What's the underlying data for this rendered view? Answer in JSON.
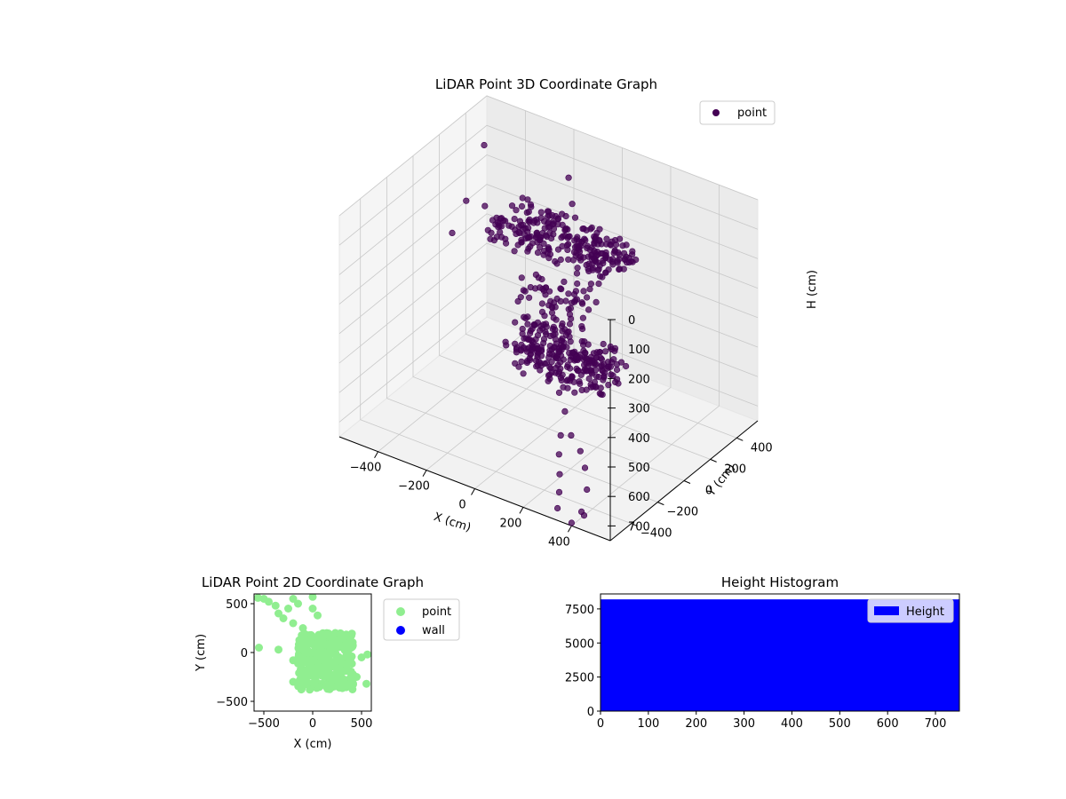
{
  "colors": {
    "point3d": "#440154",
    "point2d": "#90ee90",
    "wall": "#0000ff",
    "hist": "#0000ff"
  },
  "chart_data": [
    {
      "type": "scatter",
      "projection": "3d",
      "title": "LiDAR Point 3D Coordinate Graph",
      "xlabel": "X (cm)",
      "ylabel": "Y (cm)",
      "zlabel": "H (cm)",
      "xlim": [
        -560,
        560
      ],
      "ylim": [
        -560,
        560
      ],
      "zlim": [
        0,
        750
      ],
      "z_inverted": true,
      "x_ticks": [
        "−400",
        "−200",
        "0",
        "200",
        "400"
      ],
      "y_ticks": [
        "−400",
        "−200",
        "0",
        "200",
        "400"
      ],
      "z_ticks": [
        "0",
        "100",
        "200",
        "300",
        "400",
        "500",
        "600",
        "700"
      ],
      "legend": [
        "point"
      ],
      "legend_position": "top-right",
      "grid": true,
      "series": [
        {
          "name": "point",
          "color": "#440154",
          "clusters": [
            {
              "x_range": [
                -300,
                200
              ],
              "y_range": [
                80,
                330
              ],
              "z_range": [
                160,
                240
              ],
              "count": 260
            },
            {
              "x_range": [
                0,
                380
              ],
              "y_range": [
                -330,
                -80
              ],
              "z_range": [
                330,
                430
              ],
              "count": 260
            },
            {
              "x_range": [
                -100,
                150
              ],
              "y_range": [
                -120,
                120
              ],
              "z_range": [
                250,
                380
              ],
              "count": 70
            }
          ],
          "outliers": [
            {
              "x": -560,
              "y": 540,
              "z": 160
            },
            {
              "x": -520,
              "y": 330,
              "z": 260
            },
            {
              "x": -470,
              "y": 380,
              "z": 280
            },
            {
              "x": -540,
              "y": 260,
              "z": 350
            },
            {
              "x": -400,
              "y": 300,
              "z": 320
            },
            {
              "x": -200,
              "y": 520,
              "z": 150
            },
            {
              "x": -120,
              "y": 400,
              "z": 170
            },
            {
              "x": -350,
              "y": 250,
              "z": 300
            },
            {
              "x": 180,
              "y": -250,
              "z": 480
            },
            {
              "x": 220,
              "y": -280,
              "z": 520
            },
            {
              "x": 230,
              "y": -330,
              "z": 580
            },
            {
              "x": 250,
              "y": -380,
              "z": 620
            },
            {
              "x": 280,
              "y": -430,
              "z": 660
            },
            {
              "x": 300,
              "y": -470,
              "z": 700
            },
            {
              "x": 320,
              "y": -520,
              "z": 730
            },
            {
              "x": 400,
              "y": -560,
              "z": 740
            },
            {
              "x": 430,
              "y": -540,
              "z": 700
            },
            {
              "x": 430,
              "y": -520,
              "z": 720
            },
            {
              "x": 420,
              "y": -480,
              "z": 650
            },
            {
              "x": 390,
              "y": -440,
              "z": 600
            },
            {
              "x": 360,
              "y": -420,
              "z": 560
            },
            {
              "x": 300,
              "y": -380,
              "z": 540
            }
          ]
        }
      ]
    },
    {
      "type": "scatter",
      "title": "LiDAR Point 2D Coordinate Graph",
      "xlabel": "X (cm)",
      "ylabel": "Y (cm)",
      "xlim": [
        -600,
        600
      ],
      "ylim": [
        -600,
        600
      ],
      "x_ticks": [
        -500,
        0,
        500
      ],
      "y_ticks": [
        -500,
        0,
        500
      ],
      "legend": [
        "point",
        "wall"
      ],
      "legend_position": "outside-right",
      "series": [
        {
          "name": "point",
          "color": "#90ee90",
          "cluster": {
            "x_range": [
              -150,
              420
            ],
            "y_range": [
              -380,
              200
            ],
            "count": 300
          },
          "outliers": [
            {
              "x": -560,
              "y": 560
            },
            {
              "x": -500,
              "y": 550
            },
            {
              "x": -450,
              "y": 520
            },
            {
              "x": -380,
              "y": 480
            },
            {
              "x": -350,
              "y": 400
            },
            {
              "x": -300,
              "y": 350
            },
            {
              "x": -250,
              "y": 450
            },
            {
              "x": -200,
              "y": 550
            },
            {
              "x": -150,
              "y": 500
            },
            {
              "x": -200,
              "y": 300
            },
            {
              "x": -100,
              "y": 250
            },
            {
              "x": 0,
              "y": 570
            },
            {
              "x": 0,
              "y": 450
            },
            {
              "x": 50,
              "y": 380
            },
            {
              "x": -550,
              "y": 50
            },
            {
              "x": -350,
              "y": 30
            },
            {
              "x": -200,
              "y": -80
            },
            {
              "x": -200,
              "y": -300
            },
            {
              "x": 500,
              "y": -50
            },
            {
              "x": 560,
              "y": -20
            },
            {
              "x": 550,
              "y": -320
            },
            {
              "x": 450,
              "y": -250
            },
            {
              "x": -30,
              "y": -380
            },
            {
              "x": 350,
              "y": -330
            }
          ]
        },
        {
          "name": "wall",
          "color": "#0000ff",
          "values": []
        }
      ]
    },
    {
      "type": "bar",
      "title": "Height Histogram",
      "xlabel": "",
      "ylabel": "",
      "xlim": [
        0,
        750
      ],
      "ylim": [
        0,
        8600
      ],
      "x_ticks": [
        0,
        100,
        200,
        300,
        400,
        500,
        600,
        700
      ],
      "y_ticks": [
        0,
        2500,
        5000,
        7500
      ],
      "legend": [
        "Height"
      ],
      "legend_position": "top-right",
      "bins": {
        "start": 0,
        "end": 750,
        "value": 8200
      }
    }
  ]
}
